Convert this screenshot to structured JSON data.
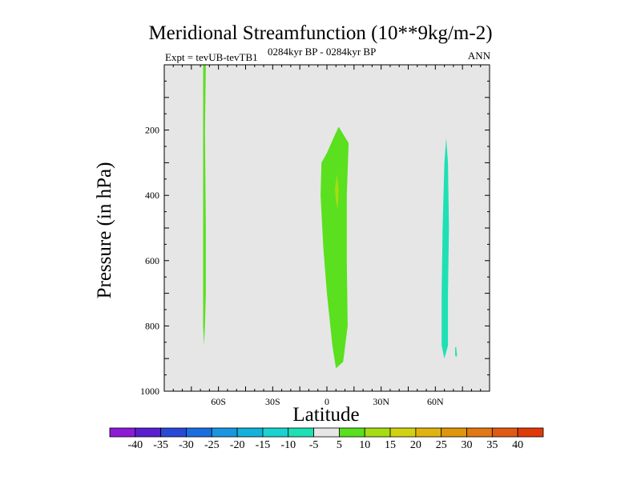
{
  "chart_data": {
    "type": "contour",
    "title": "Meridional Streamfunction (10**9kg/m-2)",
    "subtitle_left": "Expt = tevUB-tevTB1",
    "subtitle_center": "0284kyr BP - 0284kyr BP",
    "subtitle_right": "ANN",
    "xlabel": "Latitude",
    "ylabel": "Pressure (in hPa)",
    "xlim": [
      -90,
      90
    ],
    "ylim": [
      1000,
      0
    ],
    "x_ticks": [
      {
        "value": -60,
        "label": "60S"
      },
      {
        "value": -30,
        "label": "30S"
      },
      {
        "value": 0,
        "label": "0"
      },
      {
        "value": 30,
        "label": "30N"
      },
      {
        "value": 60,
        "label": "60N"
      }
    ],
    "y_ticks": [
      {
        "value": 200,
        "label": "200"
      },
      {
        "value": 400,
        "label": "400"
      },
      {
        "value": 600,
        "label": "600"
      },
      {
        "value": 800,
        "label": "800"
      },
      {
        "value": 1000,
        "label": "1000"
      }
    ],
    "background_color": "#e6e6e6",
    "colorbar": {
      "levels": [
        -40,
        -35,
        -30,
        -25,
        -20,
        -15,
        -10,
        -5,
        5,
        10,
        15,
        20,
        25,
        30,
        35,
        40
      ],
      "colors": [
        "#8c1ad6",
        "#5a1ed0",
        "#2a48d6",
        "#1a6ee0",
        "#1a96e0",
        "#12b2dc",
        "#1ad2d0",
        "#1ee0b4",
        "#e6e6e6",
        "#5ae01e",
        "#a6dc12",
        "#d2d212",
        "#e0b40e",
        "#e0960a",
        "#e07814",
        "#e05a14",
        "#e03a0a"
      ]
    },
    "regions": [
      {
        "name": "positive-5-10-sh",
        "color": "#5ae01e",
        "points": [
          [
            -68.5,
            0
          ],
          [
            -67,
            0
          ],
          [
            -67.5,
            200
          ],
          [
            -67,
            500
          ],
          [
            -67,
            700
          ],
          [
            -67.5,
            800
          ],
          [
            -68,
            860
          ],
          [
            -68.5,
            800
          ],
          [
            -68.5,
            500
          ],
          [
            -68.5,
            200
          ]
        ]
      },
      {
        "name": "positive-5-10-eq",
        "color": "#5ae01e",
        "points": [
          [
            6.5,
            190
          ],
          [
            12,
            240
          ],
          [
            11,
            400
          ],
          [
            11,
            600
          ],
          [
            11.5,
            800
          ],
          [
            9,
            910
          ],
          [
            5,
            930
          ],
          [
            3,
            860
          ],
          [
            0,
            700
          ],
          [
            -2,
            560
          ],
          [
            -3.5,
            400
          ],
          [
            -3,
            300
          ],
          [
            0,
            270
          ],
          [
            4,
            220
          ]
        ]
      },
      {
        "name": "positive-10-15-eq",
        "color": "#a6dc12",
        "points": [
          [
            5.5,
            335
          ],
          [
            6.5,
            380
          ],
          [
            6,
            440
          ],
          [
            5,
            420
          ],
          [
            4.5,
            380
          ]
        ]
      },
      {
        "name": "negative-10-5-nh",
        "color": "#1ee0b4",
        "points": [
          [
            66,
            225
          ],
          [
            67,
            300
          ],
          [
            67.5,
            500
          ],
          [
            67,
            700
          ],
          [
            67,
            860
          ],
          [
            65,
            900
          ],
          [
            63.5,
            860
          ],
          [
            63.5,
            700
          ],
          [
            64,
            500
          ],
          [
            64.5,
            400
          ],
          [
            65,
            300
          ]
        ]
      },
      {
        "name": "negative-10-5-nh-small",
        "color": "#1ee0b4",
        "points": [
          [
            71,
            865
          ],
          [
            71.5,
            865
          ],
          [
            72,
            890
          ],
          [
            71.5,
            895
          ],
          [
            71,
            890
          ]
        ]
      }
    ]
  }
}
